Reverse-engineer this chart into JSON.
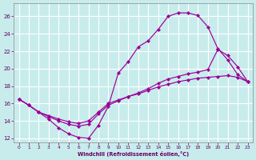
{
  "xlabel": "Windchill (Refroidissement éolien,°C)",
  "background_color": "#c8ecec",
  "line_color": "#990099",
  "grid_color": "#ffffff",
  "xlim": [
    -0.5,
    23.5
  ],
  "ylim": [
    11.5,
    27.5
  ],
  "xticks": [
    0,
    1,
    2,
    3,
    4,
    5,
    6,
    7,
    8,
    9,
    10,
    11,
    12,
    13,
    14,
    15,
    16,
    17,
    18,
    19,
    20,
    21,
    22,
    23
  ],
  "yticks": [
    12,
    14,
    16,
    18,
    20,
    22,
    24,
    26
  ],
  "line1_x": [
    0,
    1,
    2,
    3,
    4,
    5,
    6,
    7,
    8,
    9,
    10,
    11,
    12,
    13,
    14,
    15,
    16,
    17,
    18,
    19,
    20,
    21,
    22,
    23
  ],
  "line1_y": [
    16.5,
    15.8,
    15.0,
    14.2,
    13.2,
    12.5,
    12.1,
    12.0,
    13.5,
    15.7,
    19.5,
    20.8,
    22.5,
    23.2,
    24.5,
    26.0,
    26.4,
    26.4,
    26.1,
    24.8,
    22.3,
    21.0,
    19.3,
    18.5
  ],
  "line2_x": [
    0,
    1,
    2,
    3,
    4,
    5,
    6,
    7,
    8,
    9,
    10,
    11,
    12,
    13,
    14,
    15,
    16,
    17,
    18,
    19,
    20,
    21,
    22,
    23
  ],
  "line2_y": [
    16.5,
    15.8,
    15.0,
    14.5,
    14.0,
    13.6,
    13.4,
    13.6,
    14.8,
    15.8,
    16.3,
    16.8,
    17.2,
    17.7,
    18.3,
    18.8,
    19.1,
    19.4,
    19.6,
    19.9,
    22.2,
    21.5,
    20.2,
    18.5
  ],
  "line3_x": [
    0,
    1,
    2,
    3,
    4,
    5,
    6,
    7,
    8,
    9,
    10,
    11,
    12,
    13,
    14,
    15,
    16,
    17,
    18,
    19,
    20,
    21,
    22,
    23
  ],
  "line3_y": [
    16.5,
    15.8,
    15.0,
    14.6,
    14.2,
    13.9,
    13.7,
    14.0,
    15.0,
    16.0,
    16.4,
    16.8,
    17.1,
    17.5,
    17.9,
    18.2,
    18.5,
    18.7,
    18.9,
    19.0,
    19.1,
    19.2,
    19.0,
    18.5
  ]
}
